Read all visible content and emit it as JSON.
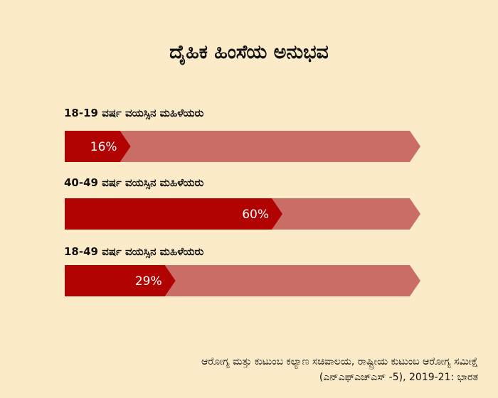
{
  "title": "ದೈಹಿಕ ಹಿಂಸೆಯ ಅನುಭವ",
  "colors": {
    "background": "#fcebc8",
    "track": "#c96d66",
    "fill": "#b20303"
  },
  "chart_data": {
    "type": "bar",
    "orientation": "horizontal",
    "categories": [
      "18-19 ವರ್ಷ ವಯಸ್ಸಿನ ಮಹಿಳೆಯರು",
      "40-49 ವರ್ಷ ವಯಸ್ಸಿನ ಮಹಿಳೆಯರು",
      "18-49 ವರ್ಷ ವಯಸ್ಸಿನ ಮಹಿಳೆಯರು"
    ],
    "values": [
      16,
      60,
      29
    ],
    "value_labels": [
      "16%",
      "60%",
      "29%"
    ],
    "xlim": [
      0,
      100
    ],
    "grid": false
  },
  "source": {
    "line1": "ಆರೋಗ್ಯ ಮತ್ತು ಕುಟುಂಬ ಕಲ್ಯಾಣ ಸಚಿವಾಲಯ, ರಾಷ್ಟ್ರೀಯ ಕುಟುಂಬ ಆರೋಗ್ಯ ಸಮೀಕ್ಷೆ",
    "line2": "(ಎನ್ಎಫ್ಎಚ್ಎಸ್ -5), 2019-21: ಭಾರತ"
  }
}
